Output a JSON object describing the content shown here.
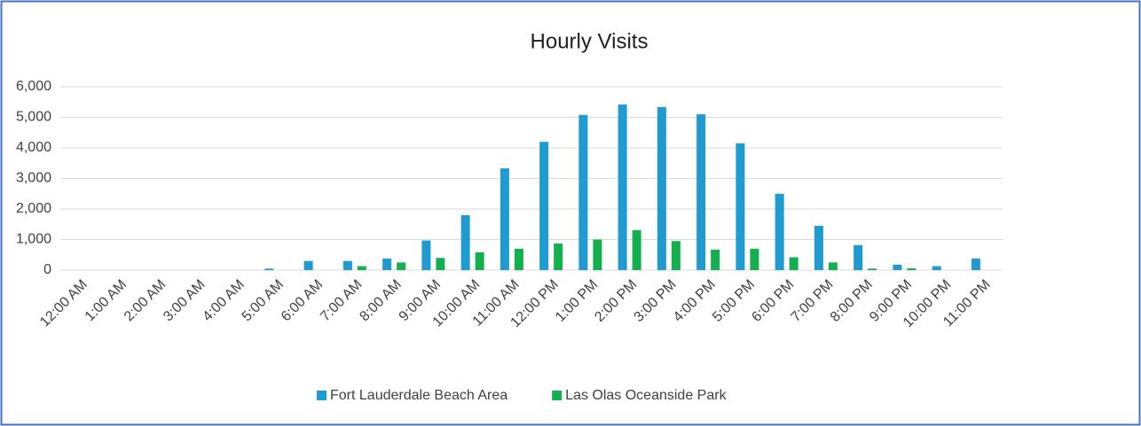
{
  "chart_data": {
    "type": "bar",
    "title": "Hourly Visits",
    "categories": [
      "12:00 AM",
      "1:00 AM",
      "2:00 AM",
      "3:00 AM",
      "4:00 AM",
      "5:00 AM",
      "6:00 AM",
      "7:00 AM",
      "8:00 AM",
      "9:00 AM",
      "10:00 AM",
      "11:00 AM",
      "12:00 PM",
      "1:00 PM",
      "2:00 PM",
      "3:00 PM",
      "4:00 PM",
      "5:00 PM",
      "6:00 PM",
      "7:00 PM",
      "8:00 PM",
      "9:00 PM",
      "10:00 PM",
      "11:00 PM"
    ],
    "series": [
      {
        "name": "Fort Lauderdale Beach Area",
        "color": "#1f9bd1",
        "values": [
          0,
          0,
          0,
          0,
          0,
          50,
          300,
          300,
          380,
          970,
          1800,
          3330,
          4200,
          5080,
          5420,
          5340,
          5100,
          4150,
          2500,
          1450,
          820,
          180,
          130,
          380
        ]
      },
      {
        "name": "Las Olas Oceanside Park",
        "color": "#13b04f",
        "values": [
          0,
          0,
          0,
          0,
          0,
          0,
          0,
          130,
          250,
          400,
          580,
          700,
          870,
          1000,
          1310,
          950,
          670,
          700,
          420,
          250,
          50,
          60,
          0,
          0
        ]
      }
    ],
    "ylim": [
      0,
      6000
    ],
    "yticks": [
      0,
      {
        "value": 1000,
        "label": "1,000"
      },
      {
        "value": 2000,
        "label": "2,000"
      },
      {
        "value": 3000,
        "label": "3,000"
      },
      {
        "value": 4000,
        "label": "4,000"
      },
      {
        "value": 5000,
        "label": "5,000"
      },
      {
        "value": 6000,
        "label": "6,000"
      }
    ],
    "grid": true,
    "legend": "bottom"
  }
}
